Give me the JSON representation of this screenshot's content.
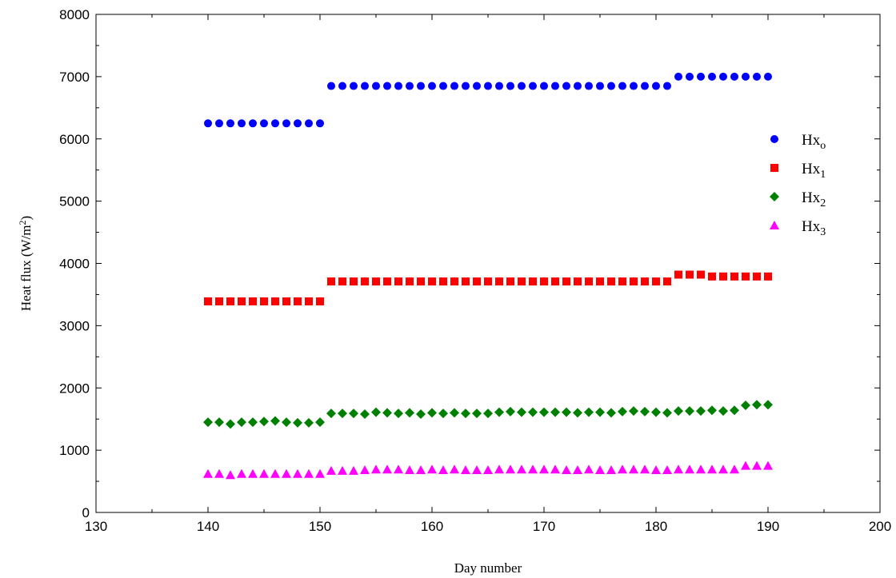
{
  "chart_data": {
    "type": "scatter",
    "title": "",
    "xlabel": "Day number",
    "ylabel_parts": {
      "main": "Heat flux (W/m",
      "sup": "2",
      "end": ")"
    },
    "xlim": [
      130,
      200
    ],
    "ylim": [
      0,
      8000
    ],
    "x_ticks": [
      130,
      140,
      150,
      160,
      170,
      180,
      190,
      200
    ],
    "y_ticks": [
      0,
      1000,
      2000,
      3000,
      4000,
      5000,
      6000,
      7000,
      8000
    ],
    "grid": false,
    "legend_position": "right",
    "x": [
      140,
      141,
      142,
      143,
      144,
      145,
      146,
      147,
      148,
      149,
      150,
      151,
      152,
      153,
      154,
      155,
      156,
      157,
      158,
      159,
      160,
      161,
      162,
      163,
      164,
      165,
      166,
      167,
      168,
      169,
      170,
      171,
      172,
      173,
      174,
      175,
      176,
      177,
      178,
      179,
      180,
      181,
      182,
      183,
      184,
      185,
      186,
      187,
      188,
      189,
      190
    ],
    "series": [
      {
        "name_base": "Hx",
        "name_sub": "o",
        "marker": "circle",
        "color": "#0000ff",
        "values": [
          6250,
          6250,
          6250,
          6250,
          6250,
          6250,
          6250,
          6250,
          6250,
          6250,
          6250,
          6850,
          6850,
          6850,
          6850,
          6850,
          6850,
          6850,
          6850,
          6850,
          6850,
          6850,
          6850,
          6850,
          6850,
          6850,
          6850,
          6850,
          6850,
          6850,
          6850,
          6850,
          6850,
          6850,
          6850,
          6850,
          6850,
          6850,
          6850,
          6850,
          6850,
          6850,
          7000,
          7000,
          7000,
          7000,
          7000,
          7000,
          7000,
          7000,
          7000
        ]
      },
      {
        "name_base": "Hx",
        "name_sub": "1",
        "marker": "square",
        "color": "#ff0000",
        "values": [
          3390,
          3390,
          3390,
          3390,
          3390,
          3390,
          3390,
          3390,
          3390,
          3390,
          3390,
          3710,
          3710,
          3710,
          3710,
          3710,
          3710,
          3710,
          3710,
          3710,
          3710,
          3710,
          3710,
          3710,
          3710,
          3710,
          3710,
          3710,
          3710,
          3710,
          3710,
          3710,
          3710,
          3710,
          3710,
          3710,
          3710,
          3710,
          3710,
          3710,
          3710,
          3710,
          3820,
          3820,
          3820,
          3790,
          3790,
          3790,
          3790,
          3790,
          3790
        ]
      },
      {
        "name_base": "Hx",
        "name_sub": "2",
        "marker": "diamond",
        "color": "#008000",
        "values": [
          1450,
          1450,
          1420,
          1450,
          1450,
          1460,
          1470,
          1450,
          1440,
          1440,
          1450,
          1590,
          1590,
          1590,
          1580,
          1610,
          1600,
          1590,
          1600,
          1580,
          1600,
          1590,
          1600,
          1590,
          1590,
          1590,
          1610,
          1620,
          1610,
          1610,
          1610,
          1610,
          1610,
          1600,
          1610,
          1610,
          1600,
          1620,
          1630,
          1620,
          1610,
          1600,
          1630,
          1630,
          1630,
          1640,
          1630,
          1640,
          1720,
          1730,
          1730
        ]
      },
      {
        "name_base": "Hx",
        "name_sub": "3",
        "marker": "triangle",
        "color": "#ff00ff",
        "values": [
          620,
          620,
          600,
          620,
          620,
          620,
          620,
          620,
          620,
          620,
          620,
          670,
          670,
          670,
          680,
          690,
          690,
          690,
          680,
          680,
          690,
          680,
          690,
          680,
          680,
          680,
          690,
          690,
          690,
          690,
          690,
          690,
          680,
          680,
          690,
          680,
          680,
          690,
          690,
          690,
          680,
          680,
          690,
          690,
          690,
          690,
          690,
          690,
          750,
          750,
          750
        ]
      }
    ]
  }
}
